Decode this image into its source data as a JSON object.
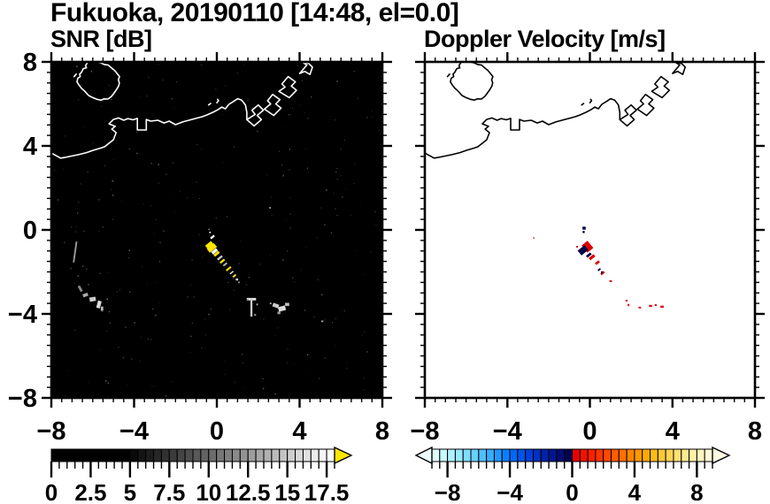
{
  "title": "Fukuoka, 20190110 [14:48, el=0.0]",
  "panels": {
    "snr": {
      "title": "SNR [dB]"
    },
    "doppler": {
      "title": "Doppler Velocity [m/s]"
    }
  },
  "chart_data": [
    {
      "type": "heatmap",
      "name": "snr",
      "title": "SNR [dB]",
      "xlim": [
        -8,
        8
      ],
      "ylim": [
        -8,
        8
      ],
      "x_tick_values": [
        -8,
        -4,
        0,
        4,
        8
      ],
      "x_tick_labels": [
        "−8",
        "−4",
        "0",
        "4",
        "8"
      ],
      "y_tick_values": [
        8,
        4,
        0,
        -4,
        -8
      ],
      "y_tick_labels": [
        "8",
        "4",
        "0",
        "−4",
        "−8"
      ],
      "minor_tick_step": 0.5,
      "grid": false,
      "background": "#000000",
      "coast_color": "#ffffff",
      "speckles": {
        "count": 260,
        "seed": 9
      },
      "colorbar": {
        "range": [
          0,
          18
        ],
        "label_values": [
          0,
          2.5,
          5,
          7.5,
          10,
          12.5,
          15,
          17.5
        ],
        "tick_labels": [
          "0",
          "2.5",
          "5",
          "7.5",
          "10",
          "12.5",
          "15",
          "17.5"
        ],
        "overflow_color": "#ffe600",
        "segments": [
          "#000000",
          "#000000",
          "#000000",
          "#000000",
          "#000000",
          "#000000",
          "#000000",
          "#000000",
          "#000000",
          "#000000",
          "#0a0a0a",
          "#141414",
          "#1d1d1d",
          "#272727",
          "#313131",
          "#3b3b3b",
          "#454545",
          "#4e4e4e",
          "#585858",
          "#626262",
          "#6c6c6c",
          "#767676",
          "#7f7f7f",
          "#898989",
          "#939393",
          "#9d9d9d",
          "#a7a7a7",
          "#b0b0b0",
          "#bababa",
          "#c4c4c4",
          "#cecece",
          "#d8d8d8",
          "#e1e1e1",
          "#ebebeb",
          "#f5f5f5",
          "#ffffff"
        ]
      },
      "echoes": [
        {
          "x": -0.38,
          "y": 0.02,
          "w": 0.06,
          "h": 0.06,
          "c": "#999999"
        },
        {
          "x": -0.33,
          "y": -0.12,
          "w": 0.07,
          "h": 0.07,
          "c": "#ffffff"
        },
        {
          "x": -0.21,
          "y": -0.34,
          "w": 0.1,
          "h": 0.22,
          "c": "#ffffff",
          "r": 51
        },
        {
          "x": -0.37,
          "y": -0.71,
          "w": 0.18,
          "h": 0.36,
          "c": "#ffe600",
          "r": 51
        },
        {
          "x": -0.24,
          "y": -0.86,
          "w": 0.24,
          "h": 0.44,
          "c": "#ffe600",
          "r": 51
        },
        {
          "x": -0.11,
          "y": -1.02,
          "w": 0.15,
          "h": 0.3,
          "c": "#ffffff",
          "r": 51
        },
        {
          "x": -0.01,
          "y": -1.14,
          "w": 0.13,
          "h": 0.3,
          "c": "#ffe600",
          "r": 51
        },
        {
          "x": 0.15,
          "y": -1.33,
          "w": 0.1,
          "h": 0.28,
          "c": "#cccccc",
          "r": 51
        },
        {
          "x": 0.27,
          "y": -1.49,
          "w": 0.1,
          "h": 0.26,
          "c": "#ffe600",
          "r": 51
        },
        {
          "x": 0.4,
          "y": -1.64,
          "w": 0.08,
          "h": 0.22,
          "c": "#bbbbbb",
          "r": 51
        },
        {
          "x": 0.57,
          "y": -1.85,
          "w": 0.09,
          "h": 0.28,
          "c": "#ffe600",
          "r": 51
        },
        {
          "x": 0.72,
          "y": -2.03,
          "w": 0.07,
          "h": 0.2,
          "c": "#dddddd",
          "r": 51
        },
        {
          "x": 0.85,
          "y": -2.19,
          "w": 0.08,
          "h": 0.18,
          "c": "#ffee00",
          "r": 51
        },
        {
          "x": 0.97,
          "y": -2.36,
          "w": 0.12,
          "h": 0.1,
          "c": "#cccccc"
        },
        {
          "x": 1.07,
          "y": -2.5,
          "w": 0.08,
          "h": 0.08,
          "c": "#888888"
        },
        {
          "x": 2.57,
          "y": 1.05,
          "w": 0.06,
          "h": 0.06,
          "c": "#ffffff"
        },
        {
          "x": 1.67,
          "y": -3.3,
          "w": 0.45,
          "h": 0.12,
          "c": "#dddddd"
        },
        {
          "x": 1.67,
          "y": -3.7,
          "w": 0.1,
          "h": 0.85,
          "c": "#cccccc"
        },
        {
          "x": 1.95,
          "y": -3.55,
          "w": 0.08,
          "h": 0.08,
          "c": "#aaaaaa"
        },
        {
          "x": 1.5,
          "y": -3.32,
          "w": 0.07,
          "h": 0.07,
          "c": "#999999"
        },
        {
          "x": 1.85,
          "y": -4.05,
          "w": 0.09,
          "h": 0.09,
          "c": "#999999"
        },
        {
          "x": 2.6,
          "y": -3.5,
          "w": 0.08,
          "h": 0.08,
          "c": "#aaaaaa"
        },
        {
          "x": 2.85,
          "y": -3.6,
          "w": 0.3,
          "h": 0.18,
          "c": "#cccccc",
          "r": 20
        },
        {
          "x": 3.15,
          "y": -3.75,
          "w": 0.35,
          "h": 0.22,
          "c": "#dddddd",
          "r": -15
        },
        {
          "x": 3.4,
          "y": -3.55,
          "w": 0.2,
          "h": 0.15,
          "c": "#bbbbbb"
        },
        {
          "x": 3.0,
          "y": -3.95,
          "w": 0.15,
          "h": 0.12,
          "c": "#999999"
        },
        {
          "x": 5.1,
          "y": -4.35,
          "w": 0.1,
          "h": 0.08,
          "c": "#999999"
        },
        {
          "x": -6.85,
          "y": -1.05,
          "w": 0.08,
          "h": 1.0,
          "c": "#999999",
          "r": 8
        },
        {
          "x": -6.6,
          "y": -2.8,
          "w": 0.12,
          "h": 0.3,
          "c": "#888888",
          "r": -30
        },
        {
          "x": -6.35,
          "y": -3.1,
          "w": 0.25,
          "h": 0.15,
          "c": "#aaaaaa",
          "r": -20
        },
        {
          "x": -6.0,
          "y": -3.3,
          "w": 0.3,
          "h": 0.2,
          "c": "#cccccc",
          "r": -10
        },
        {
          "x": -5.7,
          "y": -3.55,
          "w": 0.18,
          "h": 0.35,
          "c": "#dddddd",
          "r": 15
        },
        {
          "x": -5.55,
          "y": -3.75,
          "w": 0.12,
          "h": 0.2,
          "c": "#bbbbbb"
        },
        {
          "x": -6.7,
          "y": -2.2,
          "w": 0.06,
          "h": 0.06,
          "c": "#666666"
        },
        {
          "x": -6.2,
          "y": -2.6,
          "w": 0.05,
          "h": 0.05,
          "c": "#777777"
        },
        {
          "x": -5.3,
          "y": -3.3,
          "w": 0.06,
          "h": 0.06,
          "c": "#888888"
        },
        {
          "x": -5.2,
          "y": -3.9,
          "w": 0.05,
          "h": 0.05,
          "c": "#666666"
        }
      ]
    },
    {
      "type": "heatmap",
      "name": "doppler",
      "title": "Doppler Velocity [m/s]",
      "xlim": [
        -8,
        8
      ],
      "ylim": [
        -8,
        8
      ],
      "x_tick_values": [
        -8,
        -4,
        0,
        4,
        8
      ],
      "x_tick_labels": [
        "−8",
        "−4",
        "0",
        "4",
        "8"
      ],
      "y_tick_values": [
        8,
        4,
        0,
        -4,
        -8
      ],
      "y_tick_labels": [],
      "minor_tick_step": 0.5,
      "grid": false,
      "background": "#ffffff",
      "coast_color": "#000000",
      "colorbar": {
        "range": [
          -9,
          9
        ],
        "label_values": [
          -8,
          -4,
          0,
          4,
          8
        ],
        "tick_labels": [
          "−8",
          "−4",
          "0",
          "4",
          "8"
        ],
        "underflow_color": "#ecffff",
        "overflow_color": "#fffde4",
        "segments": [
          "#e0ffff",
          "#c8f8ff",
          "#b0f0ff",
          "#98e8ff",
          "#80dcff",
          "#68d0ff",
          "#50c0ff",
          "#38acff",
          "#2096ff",
          "#0880ff",
          "#0068f8",
          "#0054e8",
          "#0040d8",
          "#0030c0",
          "#0022a8",
          "#001690",
          "#000c74",
          "#000450",
          "#e80000",
          "#f31000",
          "#fb2000",
          "#ff3400",
          "#ff4800",
          "#ff5c00",
          "#ff7000",
          "#ff8400",
          "#ff9800",
          "#ffac00",
          "#ffbc14",
          "#ffc834",
          "#ffd454",
          "#ffe074",
          "#ffe890",
          "#fff0a8",
          "#fff6c0",
          "#fffbd8"
        ]
      },
      "echoes": [
        {
          "x": -0.28,
          "y": 0.08,
          "w": 0.16,
          "h": 0.14,
          "c": "#000044"
        },
        {
          "x": -0.3,
          "y": -0.1,
          "w": 0.1,
          "h": 0.1,
          "c": "#000044"
        },
        {
          "x": -0.62,
          "y": -0.8,
          "w": 0.08,
          "h": 0.08,
          "c": "#cc0000"
        },
        {
          "x": -0.12,
          "y": -0.8,
          "w": 0.45,
          "h": 0.36,
          "c": "#dd0000",
          "r": 51
        },
        {
          "x": -0.33,
          "y": -0.97,
          "w": 0.3,
          "h": 0.42,
          "c": "#000044",
          "r": 51
        },
        {
          "x": -0.05,
          "y": -1.2,
          "w": 0.12,
          "h": 0.26,
          "c": "#000044",
          "r": 51
        },
        {
          "x": 0.1,
          "y": -1.3,
          "w": 0.14,
          "h": 0.3,
          "c": "#dd0000",
          "r": 51
        },
        {
          "x": 0.36,
          "y": -1.56,
          "w": 0.12,
          "h": 0.22,
          "c": "#dd0000",
          "r": 51
        },
        {
          "x": 0.45,
          "y": -1.89,
          "w": 0.08,
          "h": 0.15,
          "c": "#000044",
          "r": 51
        },
        {
          "x": 0.62,
          "y": -2.06,
          "w": 0.1,
          "h": 0.2,
          "c": "#dd0000",
          "r": 51
        },
        {
          "x": 0.58,
          "y": -2.02,
          "w": 0.09,
          "h": 0.1,
          "c": "#000044"
        },
        {
          "x": 1.01,
          "y": -2.44,
          "w": 0.12,
          "h": 0.08,
          "c": "#dd0000"
        },
        {
          "x": -2.72,
          "y": -0.38,
          "w": 0.06,
          "h": 0.06,
          "c": "#cc0000"
        },
        {
          "x": 1.78,
          "y": -3.37,
          "w": 0.1,
          "h": 0.08,
          "c": "#dd0000"
        },
        {
          "x": 1.87,
          "y": -3.58,
          "w": 0.08,
          "h": 0.1,
          "c": "#dd0000"
        },
        {
          "x": 2.42,
          "y": -3.7,
          "w": 0.12,
          "h": 0.08,
          "c": "#dd0000"
        },
        {
          "x": 2.94,
          "y": -3.62,
          "w": 0.14,
          "h": 0.1,
          "c": "#dd0000"
        },
        {
          "x": 3.19,
          "y": -3.58,
          "w": 0.1,
          "h": 0.08,
          "c": "#dd0000"
        },
        {
          "x": 3.5,
          "y": -3.66,
          "w": 0.16,
          "h": 0.1,
          "c": "#dd0000"
        }
      ]
    }
  ],
  "coastline": {
    "mainland": [
      [
        -8.0,
        3.66
      ],
      [
        -7.55,
        3.42
      ],
      [
        -7.36,
        3.45
      ],
      [
        -7.0,
        3.52
      ],
      [
        -6.71,
        3.58
      ],
      [
        -6.3,
        3.68
      ],
      [
        -5.98,
        3.79
      ],
      [
        -5.6,
        3.9
      ],
      [
        -5.43,
        3.96
      ],
      [
        -5.0,
        4.29
      ],
      [
        -4.87,
        4.63
      ],
      [
        -5.08,
        4.8
      ],
      [
        -4.91,
        4.93
      ],
      [
        -5.21,
        5.05
      ],
      [
        -5.0,
        5.26
      ],
      [
        -4.75,
        5.33
      ],
      [
        -4.5,
        5.22
      ],
      [
        -4.3,
        5.3
      ],
      [
        -4.05,
        5.24
      ],
      [
        -3.84,
        5.31
      ],
      [
        -3.84,
        4.76
      ],
      [
        -3.41,
        4.76
      ],
      [
        -3.41,
        5.26
      ],
      [
        -3.2,
        5.18
      ],
      [
        -2.85,
        5.22
      ],
      [
        -2.55,
        5.09
      ],
      [
        -2.3,
        5.18
      ],
      [
        -2.0,
        5.01
      ],
      [
        -1.65,
        5.14
      ],
      [
        -1.35,
        5.22
      ],
      [
        -1.01,
        5.31
      ],
      [
        -0.71,
        5.39
      ],
      [
        -0.49,
        5.47
      ],
      [
        -0.19,
        5.6
      ],
      [
        0.06,
        5.73
      ],
      [
        0.24,
        5.85
      ],
      [
        0.41,
        5.77
      ],
      [
        0.58,
        5.98
      ],
      [
        0.79,
        6.11
      ],
      [
        1.01,
        6.25
      ],
      [
        1.2,
        6.18
      ],
      [
        1.38,
        5.95
      ],
      [
        1.45,
        5.6
      ],
      [
        1.45,
        5.25
      ]
    ],
    "island": [
      [
        -6.25,
        7.97
      ],
      [
        -6.35,
        7.82
      ],
      [
        -6.3,
        7.72
      ],
      [
        -6.45,
        7.68
      ],
      [
        -6.55,
        7.5
      ],
      [
        -6.63,
        7.42
      ],
      [
        -6.6,
        7.3
      ],
      [
        -6.72,
        7.22
      ],
      [
        -6.76,
        7.05
      ],
      [
        -6.68,
        6.92
      ],
      [
        -6.54,
        6.74
      ],
      [
        -6.4,
        6.62
      ],
      [
        -6.2,
        6.4
      ],
      [
        -6.0,
        6.3
      ],
      [
        -5.8,
        6.22
      ],
      [
        -5.6,
        6.18
      ],
      [
        -5.45,
        6.24
      ],
      [
        -5.26,
        6.23
      ],
      [
        -5.1,
        6.35
      ],
      [
        -4.98,
        6.5
      ],
      [
        -4.85,
        6.68
      ],
      [
        -4.75,
        6.85
      ],
      [
        -4.71,
        7.0
      ],
      [
        -4.76,
        7.15
      ],
      [
        -4.7,
        7.3
      ],
      [
        -4.82,
        7.45
      ],
      [
        -4.95,
        7.6
      ],
      [
        -5.1,
        7.72
      ],
      [
        -5.25,
        7.85
      ],
      [
        -5.45,
        7.88
      ],
      [
        -5.6,
        7.95
      ],
      [
        -5.78,
        8.0
      ]
    ],
    "ports": [
      [
        [
          1.45,
          5.25
        ],
        [
          1.8,
          4.95
        ],
        [
          2.15,
          5.25
        ],
        [
          1.95,
          5.45
        ],
        [
          2.25,
          5.7
        ],
        [
          2.0,
          5.95
        ],
        [
          1.7,
          5.7
        ],
        [
          1.85,
          5.5
        ],
        [
          1.45,
          5.25
        ]
      ],
      [
        [
          2.3,
          5.75
        ],
        [
          2.75,
          5.45
        ],
        [
          3.1,
          5.8
        ],
        [
          2.85,
          6.0
        ],
        [
          3.05,
          6.2
        ],
        [
          2.7,
          6.45
        ],
        [
          2.45,
          6.15
        ],
        [
          2.6,
          6.0
        ],
        [
          2.3,
          5.75
        ]
      ],
      [
        [
          3.0,
          6.6
        ],
        [
          3.5,
          6.3
        ],
        [
          3.85,
          6.65
        ],
        [
          3.6,
          6.85
        ],
        [
          3.8,
          7.05
        ],
        [
          3.45,
          7.3
        ],
        [
          3.15,
          6.95
        ],
        [
          3.3,
          6.8
        ],
        [
          3.0,
          6.6
        ]
      ],
      [
        [
          4.0,
          7.45
        ],
        [
          4.35,
          7.85
        ],
        [
          4.15,
          7.98
        ],
        [
          4.45,
          7.92
        ],
        [
          4.62,
          7.75
        ],
        [
          4.5,
          7.4
        ],
        [
          4.25,
          7.55
        ],
        [
          4.0,
          7.45
        ]
      ]
    ],
    "islets": [
      [
        [
          0.0,
          6.05
        ],
        [
          0.08,
          6.15
        ],
        [
          0.04,
          6.22
        ]
      ],
      [
        [
          -0.4,
          5.95
        ],
        [
          -0.3,
          6.02
        ]
      ],
      [
        [
          -6.9,
          7.3
        ],
        [
          -6.8,
          7.42
        ]
      ]
    ]
  }
}
